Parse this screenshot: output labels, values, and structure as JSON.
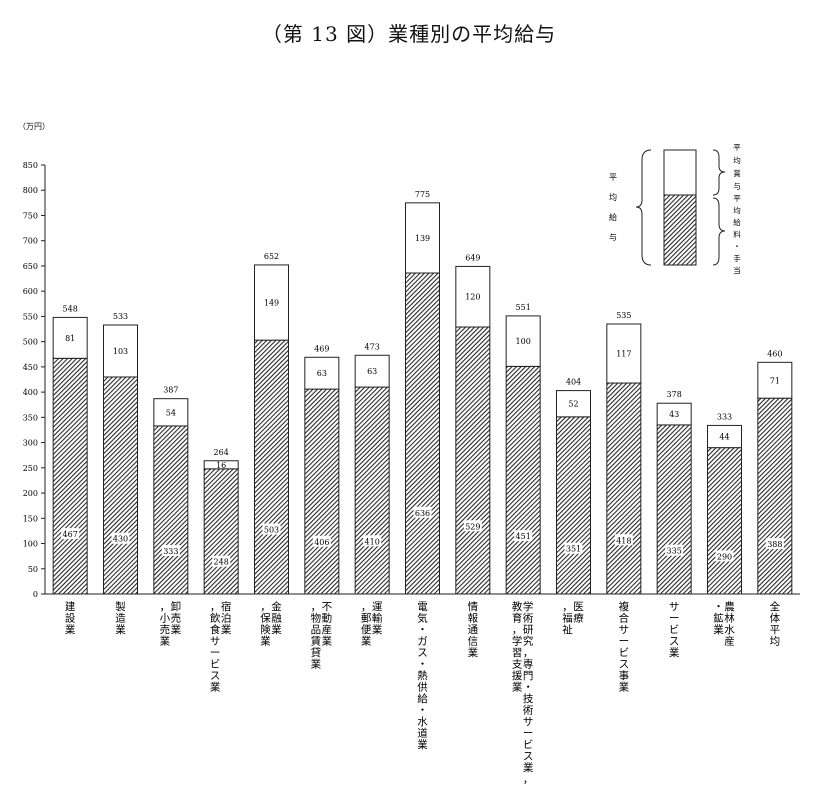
{
  "title": "（第 13 図）業種別の平均給与",
  "unit": "（万円）",
  "legend": {
    "group_label": "平均給与",
    "bonus_label": "平均賞与",
    "salary_label": "平均給料・手当"
  },
  "chart_data": {
    "type": "bar",
    "stacked": true,
    "title": "（第 13 図）業種別の平均給与",
    "ylabel": "（万円）",
    "ylim": [
      0,
      850
    ],
    "yticks": [
      0,
      50,
      100,
      150,
      200,
      250,
      300,
      350,
      400,
      450,
      500,
      550,
      600,
      650,
      700,
      750,
      800,
      850
    ],
    "categories": [
      "建設業",
      "製造業",
      "卸売業,小売業",
      "宿泊業,飲食サービス業",
      "金融業,保険業",
      "不動産業,物品賃貸業",
      "運輸業,郵便業",
      "電気・ガス・熱供給・水道業",
      "情報通信業",
      "学術研究,専門・技術サービス業,教育,学習支援業",
      "医療,福祉",
      "複合サービス事業",
      "サービス業",
      "農林水産・鉱業",
      "全体平均"
    ],
    "series": [
      {
        "name": "平均給料・手当",
        "values": [
          467,
          430,
          333,
          248,
          503,
          406,
          410,
          636,
          529,
          451,
          351,
          418,
          335,
          290,
          388
        ]
      },
      {
        "name": "平均賞与",
        "values": [
          81,
          103,
          54,
          16,
          149,
          63,
          63,
          139,
          120,
          100,
          52,
          117,
          43,
          44,
          71
        ]
      }
    ],
    "totals": [
      548,
      533,
      387,
      264,
      652,
      469,
      473,
      775,
      649,
      551,
      404,
      535,
      378,
      333,
      460
    ],
    "grid": false,
    "legend_position": "top-right"
  },
  "xlabels": [
    {
      "col1": "建設業",
      "col2": ""
    },
    {
      "col1": "製造業",
      "col2": ""
    },
    {
      "col1": "卸売業",
      "col2": "，小売業"
    },
    {
      "col1": "宿泊業",
      "col2": "，飲食サービス業"
    },
    {
      "col1": "金融業",
      "col2": "，保険業"
    },
    {
      "col1": "不動産業",
      "col2": "，物品賃貸業"
    },
    {
      "col1": "運輸業",
      "col2": "，郵便業"
    },
    {
      "col1": "電気・ガス・熱供給・水道業",
      "col2": ""
    },
    {
      "col1": "情報通信業",
      "col2": ""
    },
    {
      "col1": "学術研究，専門・技術サービス業，",
      "col2": "教育，学習支援業"
    },
    {
      "col1": "医療",
      "col2": "，福祉"
    },
    {
      "col1": "複合サービス事業",
      "col2": ""
    },
    {
      "col1": "サービス業",
      "col2": ""
    },
    {
      "col1": "農林水産",
      "col2": "・鉱業"
    },
    {
      "col1": "全体平均",
      "col2": ""
    }
  ]
}
